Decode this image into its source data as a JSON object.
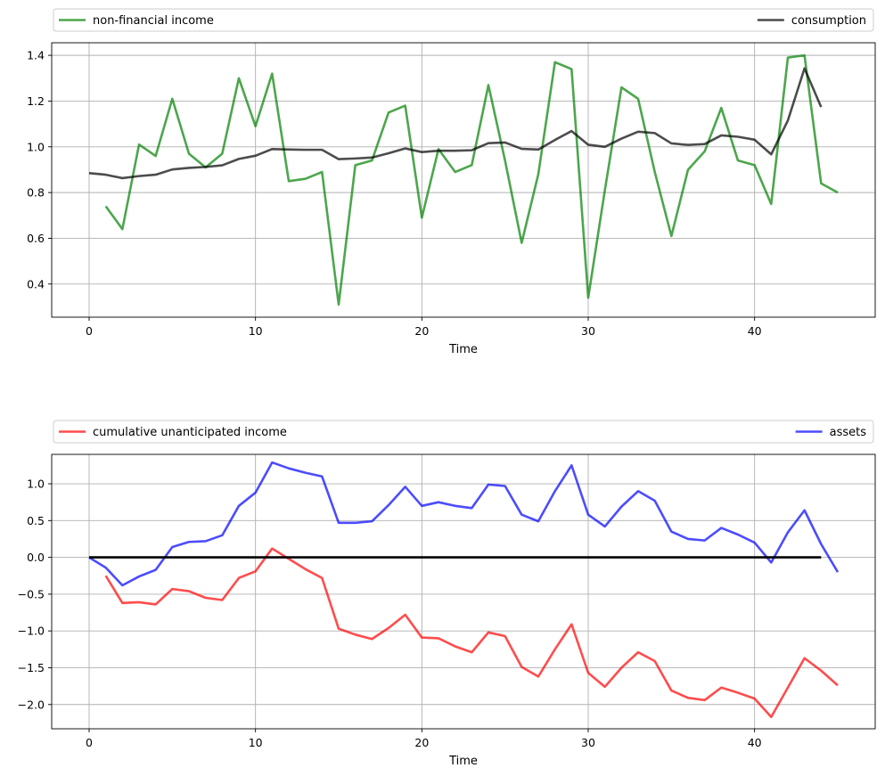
{
  "chart_data": [
    {
      "type": "line",
      "title": "",
      "xlabel": "Time",
      "ylabel": "",
      "xlim": [
        -2.25,
        47.25
      ],
      "ylim": [
        0.255,
        1.455
      ],
      "xticks": [
        0,
        10,
        20,
        30,
        40
      ],
      "yticks": [
        0.4,
        0.6,
        0.8,
        1.0,
        1.2,
        1.4
      ],
      "ytick_labels": [
        "0.4",
        "0.6",
        "0.8",
        "1.0",
        "1.2",
        "1.4"
      ],
      "grid": true,
      "legend_placement": "above plot, expanded across full width",
      "series": [
        {
          "name": "non-financial income",
          "color": "#008000",
          "x_start": 1,
          "values": [
            0.74,
            0.64,
            1.01,
            0.96,
            1.21,
            0.97,
            0.91,
            0.97,
            1.3,
            1.09,
            1.32,
            0.85,
            0.86,
            0.89,
            0.31,
            0.92,
            0.94,
            1.15,
            1.18,
            0.69,
            0.99,
            0.89,
            0.92,
            1.27,
            0.94,
            0.58,
            0.88,
            1.37,
            1.34,
            0.34,
            0.81,
            1.26,
            1.21,
            0.89,
            0.61,
            0.9,
            0.98,
            1.17,
            0.94,
            0.92,
            0.75,
            1.39,
            1.4,
            0.84,
            0.8
          ],
          "legend_side": "left"
        },
        {
          "name": "consumption",
          "color": "#000000",
          "x_start": 0,
          "values": [
            0.885,
            0.878,
            0.863,
            0.872,
            0.878,
            0.901,
            0.908,
            0.912,
            0.919,
            0.947,
            0.961,
            0.99,
            0.988,
            0.987,
            0.987,
            0.946,
            0.949,
            0.953,
            0.972,
            0.993,
            0.977,
            0.983,
            0.983,
            0.985,
            1.016,
            1.019,
            0.991,
            0.988,
            1.03,
            1.069,
            1.009,
            1.0,
            1.036,
            1.066,
            1.06,
            1.015,
            1.008,
            1.012,
            1.05,
            1.044,
            1.031,
            0.967,
            1.115,
            1.343,
            1.174
          ],
          "legend_side": "right"
        }
      ]
    },
    {
      "type": "line",
      "title": "",
      "xlabel": "Time",
      "ylabel": "",
      "xlim": [
        -2.25,
        47.25
      ],
      "ylim": [
        -2.33,
        1.4
      ],
      "xticks": [
        0,
        10,
        20,
        30,
        40
      ],
      "yticks": [
        -2.0,
        -1.5,
        -1.0,
        -0.5,
        0.0,
        0.5,
        1.0
      ],
      "ytick_labels": [
        "−2.0",
        "−1.5",
        "−1.0",
        "−0.5",
        "0.0",
        "0.5",
        "1.0"
      ],
      "grid": true,
      "legend_placement": "above plot, expanded across full width",
      "series": [
        {
          "name": "cumulative unanticipated income",
          "color": "#ff0000",
          "x_start": 1,
          "values": [
            -0.25,
            -0.62,
            -0.61,
            -0.64,
            -0.43,
            -0.46,
            -0.55,
            -0.58,
            -0.28,
            -0.19,
            0.12,
            -0.02,
            -0.16,
            -0.28,
            -0.97,
            -1.05,
            -1.11,
            -0.96,
            -0.78,
            -1.09,
            -1.1,
            -1.21,
            -1.29,
            -1.02,
            -1.07,
            -1.49,
            -1.62,
            -1.25,
            -0.91,
            -1.57,
            -1.76,
            -1.5,
            -1.29,
            -1.41,
            -1.81,
            -1.91,
            -1.94,
            -1.77,
            -1.84,
            -1.92,
            -2.17,
            -1.77,
            -1.37,
            -1.54,
            -1.74
          ],
          "legend_side": "left"
        },
        {
          "name": "assets",
          "color": "#0000ff",
          "x_start": 0,
          "values": [
            0.0,
            -0.14,
            -0.38,
            -0.26,
            -0.17,
            0.14,
            0.21,
            0.22,
            0.3,
            0.7,
            0.88,
            1.29,
            1.21,
            1.15,
            1.1,
            0.47,
            0.47,
            0.49,
            0.71,
            0.96,
            0.7,
            0.75,
            0.7,
            0.67,
            0.99,
            0.97,
            0.58,
            0.49,
            0.9,
            1.25,
            0.58,
            0.42,
            0.69,
            0.9,
            0.77,
            0.35,
            0.25,
            0.23,
            0.4,
            0.31,
            0.2,
            -0.07,
            0.34,
            0.64,
            0.18,
            -0.2
          ],
          "legend_side": "right"
        },
        {
          "name": "",
          "color": "#000000",
          "x_start": 0,
          "values": [
            0.0,
            0.0
          ],
          "x_end": 44,
          "legend_side": ""
        }
      ]
    }
  ]
}
